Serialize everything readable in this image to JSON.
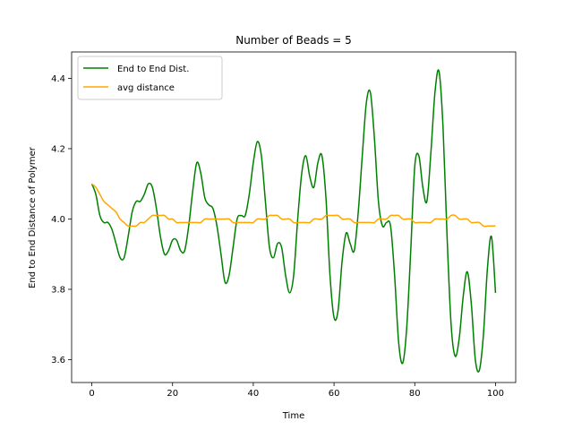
{
  "chart_data": {
    "type": "line",
    "title": "Number of Beads = 5",
    "xlabel": "Time",
    "ylabel": "End to End Distance of Polymer",
    "xlim": [
      -5,
      105
    ],
    "ylim": [
      3.535,
      4.475
    ],
    "xticks": [
      0,
      20,
      40,
      60,
      80,
      100
    ],
    "yticks": [
      3.6,
      3.8,
      4.0,
      4.2,
      4.4
    ],
    "grid": false,
    "legend": "top-left",
    "series": [
      {
        "name": "End to End Dist.",
        "color": "#008000",
        "x": [
          0,
          1,
          2,
          3,
          4,
          5,
          6,
          7,
          8,
          9,
          10,
          11,
          12,
          13,
          14,
          15,
          16,
          17,
          18,
          19,
          20,
          21,
          22,
          23,
          24,
          25,
          26,
          27,
          28,
          29,
          30,
          31,
          32,
          33,
          34,
          35,
          36,
          37,
          38,
          39,
          40,
          41,
          42,
          43,
          44,
          45,
          46,
          47,
          48,
          49,
          50,
          51,
          52,
          53,
          54,
          55,
          56,
          57,
          58,
          59,
          60,
          61,
          62,
          63,
          64,
          65,
          66,
          67,
          68,
          69,
          70,
          71,
          72,
          73,
          74,
          75,
          76,
          77,
          78,
          79,
          80,
          81,
          82,
          83,
          84,
          85,
          86,
          87,
          88,
          89,
          90,
          91,
          92,
          93,
          94,
          95,
          96,
          97,
          98,
          99,
          100
        ],
        "values": [
          4.1,
          4.07,
          4.01,
          3.99,
          3.99,
          3.97,
          3.93,
          3.89,
          3.89,
          3.95,
          4.02,
          4.05,
          4.05,
          4.07,
          4.1,
          4.09,
          4.03,
          3.95,
          3.9,
          3.91,
          3.94,
          3.94,
          3.91,
          3.91,
          3.98,
          4.08,
          4.16,
          4.13,
          4.06,
          4.04,
          4.03,
          3.98,
          3.9,
          3.82,
          3.84,
          3.92,
          4.0,
          4.01,
          4.01,
          4.07,
          4.16,
          4.22,
          4.18,
          4.05,
          3.92,
          3.89,
          3.93,
          3.92,
          3.84,
          3.79,
          3.84,
          4.0,
          4.13,
          4.18,
          4.12,
          4.09,
          4.16,
          4.18,
          4.06,
          3.84,
          3.72,
          3.74,
          3.88,
          3.96,
          3.93,
          3.91,
          4.02,
          4.18,
          4.33,
          4.36,
          4.23,
          4.05,
          3.98,
          3.99,
          3.98,
          3.84,
          3.65,
          3.59,
          3.69,
          3.91,
          4.15,
          4.18,
          4.09,
          4.05,
          4.19,
          4.36,
          4.42,
          4.26,
          3.95,
          3.7,
          3.61,
          3.66,
          3.78,
          3.85,
          3.76,
          3.6,
          3.57,
          3.67,
          3.86,
          3.95,
          3.79
        ]
      },
      {
        "name": "avg distance",
        "color": "#ffa500",
        "x": [
          0,
          1,
          2,
          3,
          4,
          5,
          6,
          7,
          8,
          9,
          10,
          11,
          12,
          13,
          14,
          15,
          16,
          17,
          18,
          19,
          20,
          21,
          22,
          23,
          24,
          25,
          26,
          27,
          28,
          29,
          30,
          31,
          32,
          33,
          34,
          35,
          36,
          37,
          38,
          39,
          40,
          41,
          42,
          43,
          44,
          45,
          46,
          47,
          48,
          49,
          50,
          51,
          52,
          53,
          54,
          55,
          56,
          57,
          58,
          59,
          60,
          61,
          62,
          63,
          64,
          65,
          66,
          67,
          68,
          69,
          70,
          71,
          72,
          73,
          74,
          75,
          76,
          77,
          78,
          79,
          80,
          81,
          82,
          83,
          84,
          85,
          86,
          87,
          88,
          89,
          90,
          91,
          92,
          93,
          94,
          95,
          96,
          97,
          98,
          99,
          100
        ],
        "values": [
          4.1,
          4.09,
          4.07,
          4.05,
          4.04,
          4.03,
          4.02,
          4.0,
          3.99,
          3.98,
          3.98,
          3.98,
          3.99,
          3.99,
          4.0,
          4.01,
          4.01,
          4.01,
          4.01,
          4.0,
          4.0,
          3.99,
          3.99,
          3.99,
          3.99,
          3.99,
          3.99,
          3.99,
          4.0,
          4.0,
          4.0,
          4.0,
          4.0,
          4.0,
          4.0,
          3.99,
          3.99,
          3.99,
          3.99,
          3.99,
          3.99,
          4.0,
          4.0,
          4.0,
          4.01,
          4.01,
          4.01,
          4.0,
          4.0,
          4.0,
          3.99,
          3.99,
          3.99,
          3.99,
          3.99,
          4.0,
          4.0,
          4.0,
          4.01,
          4.01,
          4.01,
          4.01,
          4.0,
          4.0,
          4.0,
          3.99,
          3.99,
          3.99,
          3.99,
          3.99,
          3.99,
          4.0,
          4.0,
          4.0,
          4.01,
          4.01,
          4.01,
          4.0,
          4.0,
          4.0,
          3.99,
          3.99,
          3.99,
          3.99,
          3.99,
          4.0,
          4.0,
          4.0,
          4.0,
          4.01,
          4.01,
          4.0,
          4.0,
          4.0,
          3.99,
          3.99,
          3.99,
          3.98,
          3.98,
          3.98,
          3.98
        ]
      }
    ]
  }
}
